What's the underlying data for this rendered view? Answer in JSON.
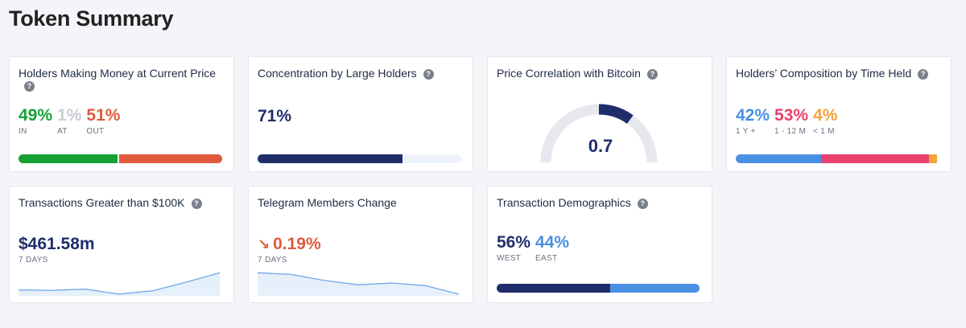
{
  "page": {
    "title": "Token Summary",
    "help_glyph": "?"
  },
  "colors": {
    "navy": "#1f2e6a",
    "blue": "#4a90e2",
    "green": "#16a136",
    "red": "#e05a3e",
    "gray": "#c9ccd3",
    "pink": "#e8436f",
    "orange": "#f2a33a",
    "track": "#eef3fb"
  },
  "holders_money": {
    "title": "Holders Making Money at Current Price",
    "in": {
      "value": "49%",
      "label": "IN",
      "fraction": 0.49
    },
    "at": {
      "value": "1%",
      "label": "AT",
      "fraction": 0.01
    },
    "out": {
      "value": "51%",
      "label": "OUT",
      "fraction": 0.51
    }
  },
  "concentration": {
    "title": "Concentration by Large Holders",
    "value": "71%",
    "fraction": 0.71
  },
  "correlation": {
    "title": "Price Correlation with Bitcoin",
    "value": "0.7",
    "fraction": 0.7
  },
  "composition": {
    "title": "Holders’ Composition by Time Held",
    "long": {
      "value": "42%",
      "label": "1 Y +",
      "fraction": 0.42
    },
    "mid": {
      "value": "53%",
      "label": "1 - 12 M",
      "fraction": 0.53
    },
    "short": {
      "value": "4%",
      "label": "< 1 M",
      "fraction": 0.04
    }
  },
  "large_tx": {
    "title": "Transactions Greater than $100K",
    "value": "$461.58m",
    "period": "7 DAYS",
    "trend": [
      0.6,
      0.55,
      0.68,
      0.1,
      0.5,
      1.5,
      2.6
    ]
  },
  "telegram": {
    "title": "Telegram Members Change",
    "arrow_glyph": "↘",
    "value": "0.19%",
    "period": "7 DAYS",
    "trend": [
      2.6,
      2.4,
      1.7,
      1.2,
      1.4,
      1.1,
      0.1
    ]
  },
  "tx_demographics": {
    "title": "Transaction Demographics",
    "west": {
      "value": "56%",
      "label": "WEST",
      "fraction": 0.56
    },
    "east": {
      "value": "44%",
      "label": "EAST",
      "fraction": 0.44
    }
  }
}
